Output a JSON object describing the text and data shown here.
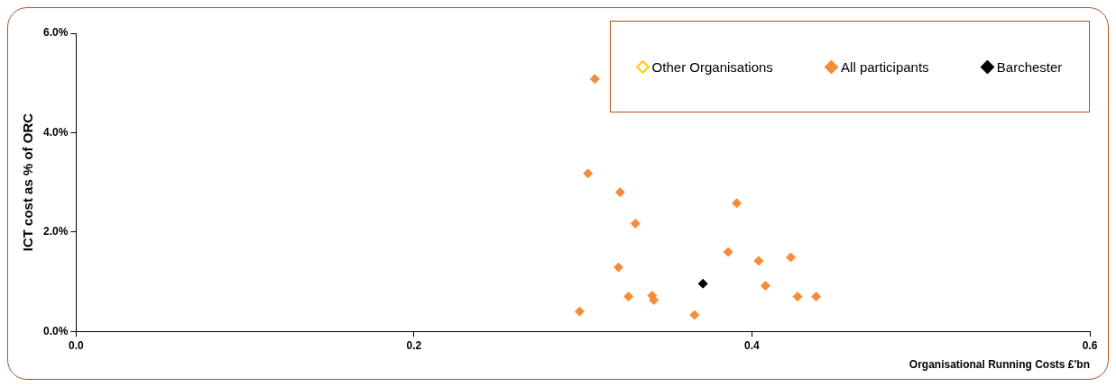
{
  "chart_data": {
    "type": "scatter",
    "xlabel": "Organisational Running Costs £'bn",
    "ylabel": "ICT cost as % of ORC",
    "xlim": [
      0,
      0.6
    ],
    "xticks": [
      {
        "value": 0,
        "label": "0.0"
      },
      {
        "value": 0.2,
        "label": "0.2"
      },
      {
        "value": 0.4,
        "label": "0.4"
      },
      {
        "value": 0.6,
        "label": "0.6"
      }
    ],
    "ylim": [
      0,
      6
    ],
    "yticks": [
      {
        "value": 0,
        "label": "0.0%"
      },
      {
        "value": 2,
        "label": "2.0%"
      },
      {
        "value": 4,
        "label": "4.0%"
      },
      {
        "value": 6,
        "label": "6.0%"
      }
    ],
    "grid": false,
    "legend": "top right",
    "marker": "diamond",
    "series": [
      {
        "name": "Other Organisations",
        "color": "#ffcc00"
      },
      {
        "name": "All participants",
        "color": "#f68b3a",
        "x": [
          0.307,
          0.303,
          0.322,
          0.331,
          0.391,
          0.321,
          0.386,
          0.404,
          0.423,
          0.298,
          0.327,
          0.341,
          0.342,
          0.366,
          0.408,
          0.427,
          0.438
        ],
        "values": [
          5.08,
          3.18,
          2.8,
          2.17,
          2.58,
          1.29,
          1.6,
          1.42,
          1.49,
          0.4,
          0.7,
          0.72,
          0.63,
          0.33,
          0.92,
          0.7,
          0.7
        ]
      },
      {
        "name": "Barchester",
        "color": "#000000",
        "x": [
          0.371
        ],
        "values": [
          0.96
        ]
      }
    ]
  }
}
